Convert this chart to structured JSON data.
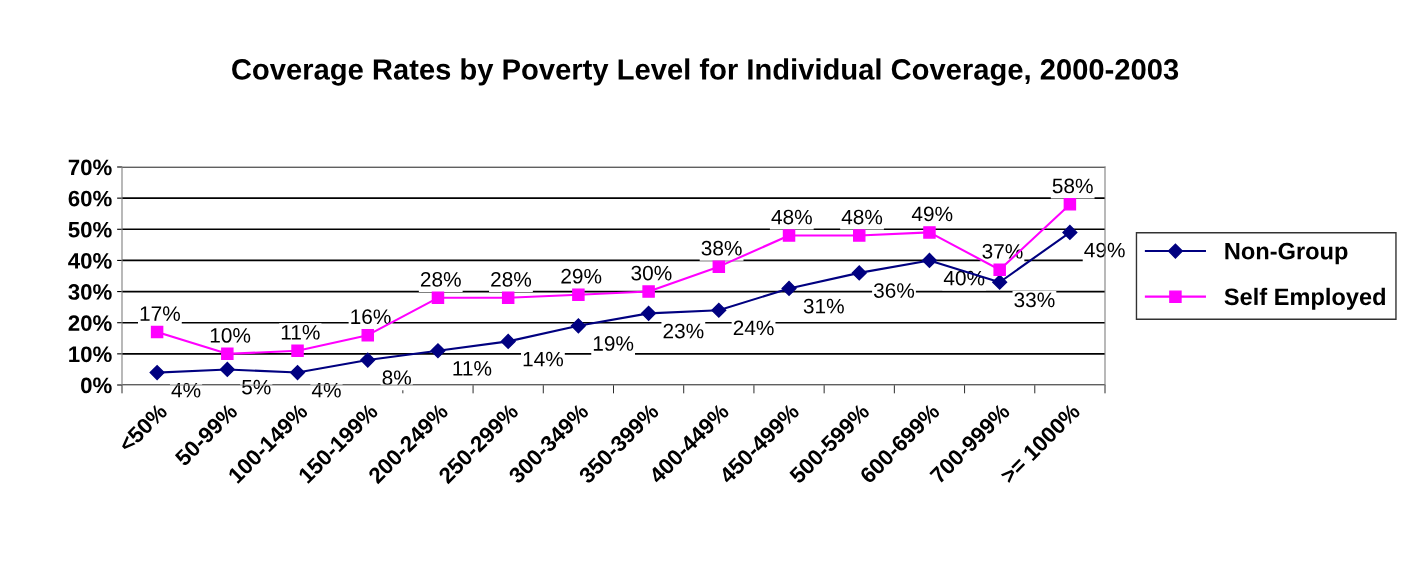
{
  "chart_data": {
    "type": "line",
    "title": "Coverage Rates by Poverty Level for Individual Coverage, 2000-2003",
    "categories": [
      "<50%",
      "50-99%",
      "100-149%",
      "150-199%",
      "200-249%",
      "250-299%",
      "300-349%",
      "350-399%",
      "400-449%",
      "450-499%",
      "500-599%",
      "600-699%",
      "700-999%",
      ">= 1000%"
    ],
    "series": [
      {
        "name": "Non-Group",
        "color": "#000080",
        "marker": "diamond",
        "values": [
          4,
          5,
          4,
          8,
          11,
          14,
          19,
          23,
          24,
          31,
          36,
          40,
          33,
          49
        ],
        "value_labels": [
          "4%",
          "5%",
          "4%",
          "8%",
          "11%",
          "14%",
          "19%",
          "23%",
          "24%",
          "31%",
          "36%",
          "40%",
          "33%",
          "49%"
        ]
      },
      {
        "name": "Self Employed",
        "color": "#ff00ff",
        "marker": "square",
        "values": [
          17,
          10,
          11,
          16,
          28,
          28,
          29,
          30,
          38,
          48,
          48,
          49,
          37,
          58
        ],
        "value_labels": [
          "17%",
          "10%",
          "11%",
          "16%",
          "28%",
          "28%",
          "29%",
          "30%",
          "38%",
          "48%",
          "48%",
          "49%",
          "37%",
          "58%"
        ]
      }
    ],
    "ylim": [
      0,
      70
    ],
    "yticks": [
      {
        "value": 0,
        "label": "0%"
      },
      {
        "value": 10,
        "label": "10%"
      },
      {
        "value": 20,
        "label": "20%"
      },
      {
        "value": 30,
        "label": "30%"
      },
      {
        "value": 40,
        "label": "40%"
      },
      {
        "value": 50,
        "label": "50%"
      },
      {
        "value": 60,
        "label": "60%"
      },
      {
        "value": 70,
        "label": "70%"
      }
    ],
    "grid": "y",
    "legend": "right",
    "line_style": "solid"
  }
}
